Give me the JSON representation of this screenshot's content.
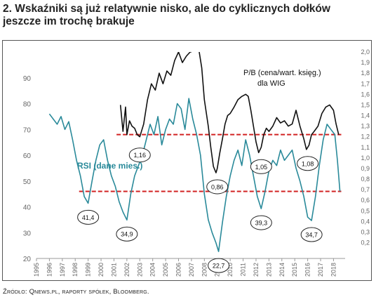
{
  "header": {
    "title_line1": "2. Wskaźniki są już relatywnie nisko, ale do cyklicznych dołków",
    "title_line2": "jeszcze im trochę brakuje"
  },
  "footer": {
    "source": "Źródło: Qnews.pl, raporty spółek, Bloomberg."
  },
  "colors": {
    "pb_line": "#111111",
    "rsi_line": "#2a8a9a",
    "threshold": "#d22222",
    "axis_text": "#666666",
    "rsi_label": "#2a8a9a"
  },
  "chart_data": {
    "type": "line",
    "title": "",
    "x_axis": {
      "ticks": [
        "1995",
        "1996",
        "1997",
        "1998",
        "1999",
        "2000",
        "2001",
        "2002",
        "2003",
        "2004",
        "2005",
        "2006",
        "2007",
        "2008",
        "2009",
        "2010",
        "2011",
        "2012",
        "2013",
        "2014",
        "2015",
        "2016",
        "2017",
        "2018"
      ],
      "range": [
        1995,
        2018.9
      ]
    },
    "y_left": {
      "range": [
        20,
        100
      ],
      "ticks": [
        20,
        30,
        40,
        50,
        60,
        70,
        80,
        90
      ]
    },
    "y_right": {
      "range": [
        0.0,
        2.0
      ],
      "ticks": [
        "0,2",
        "0,3",
        "0,4",
        "0,5",
        "0,6",
        "0,7",
        "0,8",
        "0,9",
        "1,0",
        "1,1",
        "1,2",
        "1,3",
        "1,4",
        "1,5",
        "1,6",
        "1,7",
        "1,8",
        "1,9",
        "2,0"
      ],
      "tick_values": [
        0.2,
        0.3,
        0.4,
        0.5,
        0.6,
        0.7,
        0.8,
        0.9,
        1.0,
        1.1,
        1.2,
        1.3,
        1.4,
        1.5,
        1.6,
        1.7,
        1.8,
        1.9,
        2.0
      ]
    },
    "series": [
      {
        "name": "P/B (cena/wart. księg.) dla WIG",
        "axis": "right",
        "x": [
          2001.5,
          2001.7,
          2001.9,
          2002.0,
          2002.2,
          2002.4,
          2002.6,
          2002.8,
          2003.0,
          2003.3,
          2003.6,
          2003.9,
          2004.2,
          2004.5,
          2004.8,
          2005.1,
          2005.4,
          2005.7,
          2006.0,
          2006.3,
          2006.6,
          2006.9,
          2007.0,
          null,
          2007.6,
          2007.8,
          2008.0,
          2008.3,
          2008.5,
          2008.7,
          2008.9,
          2009.0,
          2009.2,
          2009.4,
          2009.6,
          2009.8,
          2010.0,
          2010.3,
          2010.6,
          2010.9,
          2011.2,
          2011.4,
          2011.6,
          2011.8,
          2012.0,
          2012.2,
          2012.4,
          2012.6,
          2012.8,
          2013.0,
          2013.3,
          2013.6,
          2013.9,
          2014.2,
          2014.5,
          2014.8,
          2015.1,
          2015.4,
          2015.7,
          2015.9,
          2016.1,
          2016.3,
          2016.5,
          2016.8,
          2017.1,
          2017.4,
          2017.7,
          2018.0,
          2018.2,
          2018.4
        ],
        "y": [
          1.5,
          1.25,
          1.48,
          1.22,
          1.35,
          1.3,
          1.28,
          1.22,
          1.2,
          1.32,
          1.55,
          1.7,
          1.64,
          1.8,
          1.7,
          1.82,
          1.78,
          1.92,
          2.0,
          1.9,
          1.96,
          2.0,
          2.0,
          null,
          2.0,
          1.85,
          1.55,
          1.3,
          1.1,
          0.92,
          0.86,
          0.9,
          1.05,
          1.18,
          1.32,
          1.4,
          1.42,
          1.48,
          1.55,
          1.58,
          1.6,
          1.58,
          1.45,
          1.3,
          1.15,
          1.05,
          1.1,
          1.22,
          1.28,
          1.25,
          1.3,
          1.38,
          1.33,
          1.35,
          1.3,
          1.32,
          1.45,
          1.3,
          1.18,
          1.08,
          1.12,
          1.22,
          1.25,
          1.3,
          1.42,
          1.48,
          1.5,
          1.45,
          1.32,
          1.22
        ]
      },
      {
        "name": "RSI (dane mies.)",
        "axis": "left",
        "x": [
          1996.0,
          1996.3,
          1996.6,
          1996.9,
          1997.2,
          1997.5,
          1997.8,
          1998.1,
          1998.4,
          1998.7,
          1999.0,
          1999.3,
          1999.6,
          1999.9,
          2000.2,
          2000.5,
          2000.8,
          2001.1,
          2001.4,
          2001.7,
          2002.0,
          2002.3,
          2002.6,
          2002.9,
          2003.2,
          2003.5,
          2003.8,
          2004.1,
          2004.4,
          2004.7,
          2005.0,
          2005.3,
          2005.6,
          2005.9,
          2006.2,
          2006.5,
          2006.8,
          2007.1,
          2007.4,
          2007.7,
          2008.0,
          2008.3,
          2008.6,
          2008.9,
          2009.1,
          2009.4,
          2009.7,
          2010.0,
          2010.3,
          2010.6,
          2010.9,
          2011.2,
          2011.5,
          2011.8,
          2012.1,
          2012.4,
          2012.7,
          2013.0,
          2013.3,
          2013.6,
          2013.9,
          2014.2,
          2014.5,
          2014.8,
          2015.1,
          2015.4,
          2015.7,
          2016.0,
          2016.3,
          2016.6,
          2016.9,
          2017.2,
          2017.5,
          2017.8,
          2018.1,
          2018.3,
          2018.5
        ],
        "y": [
          76,
          74,
          72,
          75,
          70,
          73,
          66,
          58,
          52,
          44,
          41.4,
          50,
          58,
          64,
          66,
          58,
          52,
          48,
          42,
          38,
          34.9,
          45,
          52,
          56,
          60,
          66,
          72,
          68,
          75,
          64,
          70,
          74,
          72,
          80,
          78,
          70,
          82,
          74,
          68,
          60,
          45,
          35,
          30,
          26,
          22.7,
          34,
          44,
          52,
          58,
          62,
          56,
          66,
          60,
          52,
          44,
          39.3,
          46,
          54,
          58,
          56,
          62,
          58,
          60,
          62,
          55,
          50,
          44,
          36,
          34.7,
          44,
          56,
          66,
          72,
          70,
          68,
          58,
          46
        ]
      }
    ],
    "thresholds": [
      {
        "axis": "left",
        "value": 46
      },
      {
        "axis": "right",
        "value": 1.22
      }
    ],
    "annotations": {
      "series_labels": [
        {
          "text": "P/B (cena/wart. księg.)"
        },
        {
          "text": "dla WIG"
        },
        {
          "text": "RSI (dane mies.)"
        }
      ],
      "callouts": [
        {
          "text": "1,16",
          "x": 2003.0,
          "axis": "right",
          "value": 1.16
        },
        {
          "text": "0,86",
          "x": 2009.0,
          "axis": "right",
          "value": 0.86
        },
        {
          "text": "1,05",
          "x": 2012.4,
          "axis": "right",
          "value": 1.05
        },
        {
          "text": "1,08",
          "x": 2016.0,
          "axis": "right",
          "value": 1.08
        },
        {
          "text": "41,4",
          "x": 1999.0,
          "axis": "left",
          "value": 41.4
        },
        {
          "text": "34,9",
          "x": 2002.0,
          "axis": "left",
          "value": 34.9
        },
        {
          "text": "22,7",
          "x": 2009.1,
          "axis": "left",
          "value": 22.7
        },
        {
          "text": "39,3",
          "x": 2012.4,
          "axis": "left",
          "value": 39.3
        },
        {
          "text": "34,7",
          "x": 2016.3,
          "axis": "left",
          "value": 34.7
        }
      ]
    },
    "grid": false,
    "legend": "inline labels"
  }
}
